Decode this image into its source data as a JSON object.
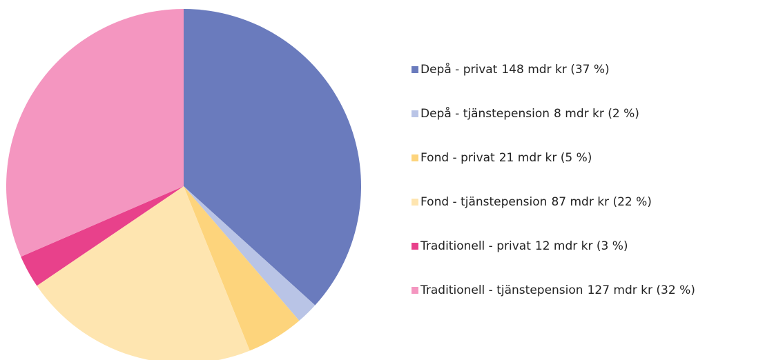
{
  "chart_data": {
    "type": "pie",
    "categories": [
      "Depå - privat",
      "Depå - tjänstepension",
      "Fond - privat",
      "Fond - tjänstepension",
      "Traditionell - privat",
      "Traditionell - tjänstepension"
    ],
    "values": [
      148,
      8,
      21,
      87,
      12,
      127
    ],
    "value_labels": [
      "148 mdr kr (37 %)",
      "8 mdr kr (2 %)",
      "21 mdr kr (5 %)",
      "87 mdr kr (22 %)",
      "12 mdr kr (3 %)",
      "127 mdr kr (32 %)"
    ],
    "colors": [
      "#6a7bbd",
      "#b9c4e6",
      "#fdd47c",
      "#fee5b0",
      "#e8418b",
      "#f496c0"
    ],
    "legend": "right"
  }
}
